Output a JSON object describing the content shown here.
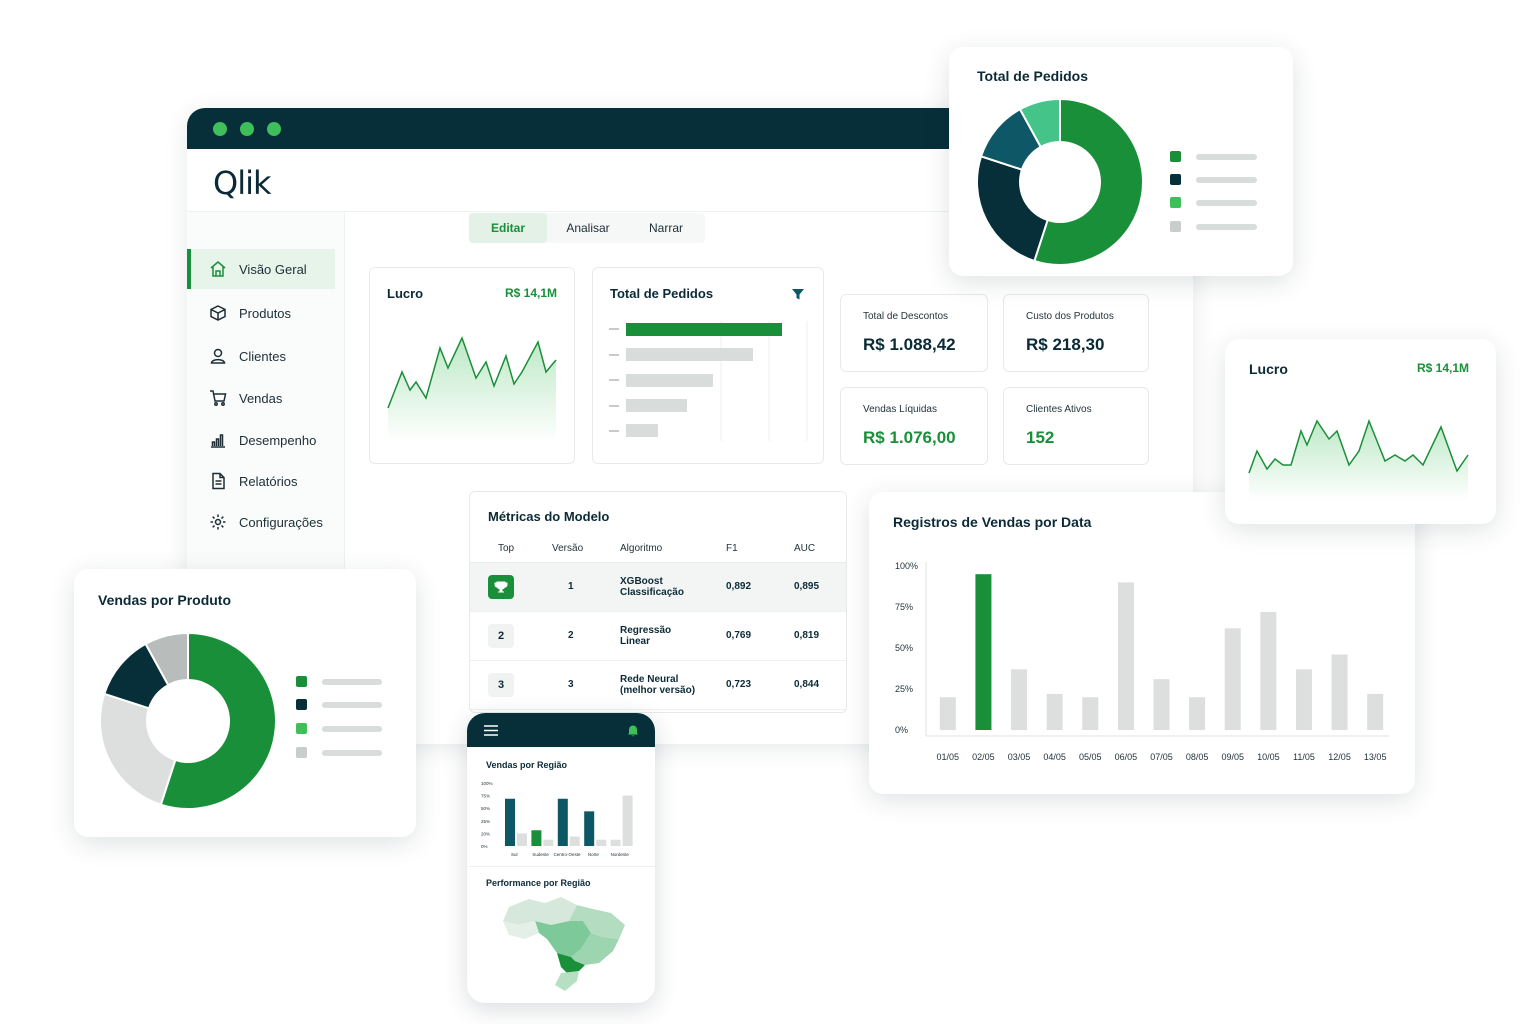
{
  "nav": {
    "tabs": [
      {
        "label": "Editar"
      },
      {
        "label": "Analisar"
      },
      {
        "label": "Narrar"
      }
    ],
    "sidebar": [
      {
        "label": "Visão Geral",
        "icon": "home-icon"
      },
      {
        "label": "Produtos",
        "icon": "box-icon"
      },
      {
        "label": "Clientes",
        "icon": "user-icon"
      },
      {
        "label": "Vendas",
        "icon": "cart-icon"
      },
      {
        "label": "Desempenho",
        "icon": "bar-chart-icon"
      },
      {
        "label": "Relatórios",
        "icon": "document-icon"
      },
      {
        "label": "Configurações",
        "icon": "gear-icon"
      }
    ]
  },
  "logo": {
    "text": "Qlik"
  },
  "lucro": {
    "title": "Lucro",
    "value": "R$ 14,1M"
  },
  "pedidos": {
    "title": "Total de Pedidos"
  },
  "kpis": [
    {
      "label": "Total de Descontos",
      "value": "R$ 1.088,42"
    },
    {
      "label": "Custo dos Produtos",
      "value": "R$ 218,30"
    },
    {
      "label": "Vendas Líquidas",
      "value": "R$ 1.076,00"
    },
    {
      "label": "Clientes Ativos",
      "value": "152"
    }
  ],
  "metrics": {
    "title": "Métricas do Modelo",
    "headers": [
      "Top",
      "Versão",
      "Algoritmo",
      "F1",
      "AUC"
    ],
    "rows": [
      {
        "rank": "",
        "version": "1",
        "algo1": "XGBoost",
        "algo2": "Classificação",
        "f1": "0,892",
        "auc": "0,895"
      },
      {
        "rank": "2",
        "version": "2",
        "algo1": "Regressão",
        "algo2": "Linear",
        "f1": "0,769",
        "auc": "0,819"
      },
      {
        "rank": "3",
        "version": "3",
        "algo1": "Rede Neural",
        "algo2": "(melhor versão)",
        "f1": "0,723",
        "auc": "0,844"
      }
    ]
  },
  "float_pedidos": {
    "title": "Total de Pedidos"
  },
  "float_lucro": {
    "title": "Lucro",
    "value": "R$ 14,1M"
  },
  "vendas_produto": {
    "title": "Vendas por Produto"
  },
  "registros": {
    "title": "Registros de Vendas por Data"
  },
  "phone": {
    "chart_title": "Vendas por Região",
    "map_title": "Performance por Região",
    "regions": [
      "Sul",
      "Sudeste",
      "Centro-Oeste",
      "Norte",
      "Nordeste"
    ],
    "yticks": [
      "100%",
      "75%",
      "50%",
      "25%",
      "20%",
      "0%"
    ]
  },
  "colors": {
    "green": "#1a8f3a",
    "dark": "#062f3a",
    "light_green": "#3fbf5a",
    "gray": "#d8dcdb"
  },
  "chart_data": [
    {
      "type": "bar",
      "title": "Registros de Vendas por Data",
      "categories": [
        "01/05",
        "02/05",
        "03/05",
        "04/05",
        "05/05",
        "06/05",
        "07/05",
        "08/05",
        "09/05",
        "10/05",
        "11/05",
        "12/05",
        "13/05"
      ],
      "yticks": [
        "100%",
        "75%",
        "50%",
        "25%",
        "0%"
      ],
      "series": [
        {
          "values": [
            20,
            95,
            37,
            22,
            20,
            90,
            31,
            20,
            62,
            72,
            37,
            46,
            22
          ]
        }
      ],
      "highlight_index": 1,
      "ylim": [
        0,
        100
      ]
    },
    {
      "type": "pie",
      "title": "Total de Pedidos",
      "values": [
        55,
        25,
        12,
        8
      ],
      "colors": [
        "#1a8f3a",
        "#062f3a",
        "#0d5766",
        "#45c48a"
      ]
    },
    {
      "type": "pie",
      "title": "Vendas por Produto",
      "values": [
        55,
        25,
        12,
        8
      ],
      "colors": [
        "#1a8f3a",
        "#dcdfde",
        "#062f3a",
        "#b8bcbb"
      ]
    },
    {
      "type": "bar",
      "title": "Vendas por Região",
      "categories": [
        "Sul",
        "Sudeste",
        "Centro-Oeste",
        "Norte",
        "Nordeste"
      ],
      "series": [
        {
          "values": [
            75,
            25,
            75,
            55,
            10
          ]
        },
        {
          "values": [
            20,
            10,
            15,
            10,
            80
          ]
        }
      ],
      "ylim": [
        0,
        100
      ]
    }
  ]
}
